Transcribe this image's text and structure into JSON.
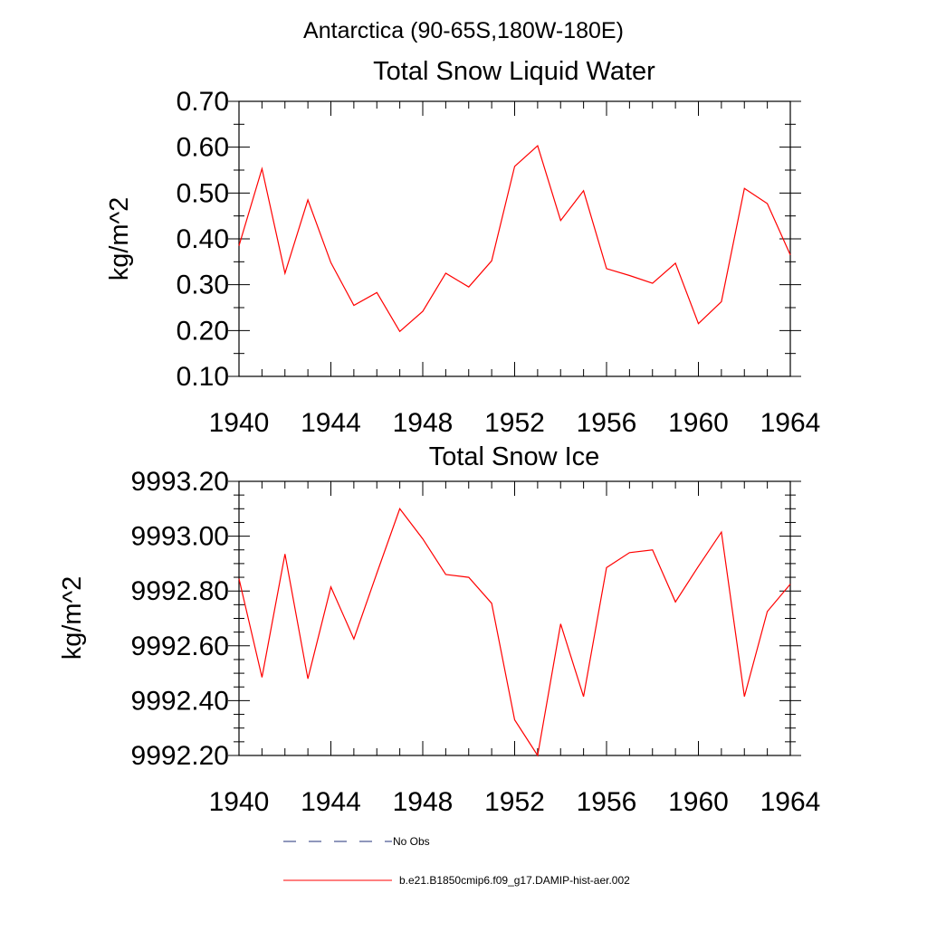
{
  "figure_title": "Antarctica (90-65S,180W-180E)",
  "colors": {
    "series": "#ff0000",
    "no_obs": "#1f2f7a",
    "axis": "#000000"
  },
  "chart_data": [
    {
      "type": "line",
      "title": "Total Snow Liquid Water",
      "ylabel": "kg/m^2",
      "xlabel": "",
      "xlim": [
        1940,
        1964
      ],
      "ylim": [
        0.1,
        0.7
      ],
      "x_ticks": [
        "1940",
        "1944",
        "1948",
        "1952",
        "1956",
        "1960",
        "1964"
      ],
      "y_ticks": [
        "0.10",
        "0.20",
        "0.30",
        "0.40",
        "0.50",
        "0.60",
        "0.70"
      ],
      "grid": false,
      "series": [
        {
          "name": "b.e21.B1850cmip6.f09_g17.DAMIP-hist-aer.002",
          "x": [
            1940,
            1941,
            1942,
            1943,
            1944,
            1945,
            1946,
            1947,
            1948,
            1949,
            1950,
            1951,
            1952,
            1953,
            1954,
            1955,
            1956,
            1957,
            1958,
            1959,
            1960,
            1961,
            1962,
            1963,
            1964
          ],
          "values": [
            0.385,
            0.553,
            0.325,
            0.485,
            0.348,
            0.255,
            0.283,
            0.198,
            0.242,
            0.325,
            0.295,
            0.352,
            0.558,
            0.603,
            0.44,
            0.505,
            0.335,
            0.32,
            0.303,
            0.347,
            0.215,
            0.263,
            0.51,
            0.477,
            0.365
          ]
        }
      ]
    },
    {
      "type": "line",
      "title": "Total Snow Ice",
      "ylabel": "kg/m^2",
      "xlabel": "",
      "xlim": [
        1940,
        1964
      ],
      "ylim": [
        9992.2,
        9993.2
      ],
      "x_ticks": [
        "1940",
        "1944",
        "1948",
        "1952",
        "1956",
        "1960",
        "1964"
      ],
      "y_ticks": [
        "9992.20",
        "9992.40",
        "9992.60",
        "9992.80",
        "9993.00",
        "9993.20"
      ],
      "grid": false,
      "series": [
        {
          "name": "b.e21.B1850cmip6.f09_g17.DAMIP-hist-aer.002",
          "x": [
            1940,
            1941,
            1942,
            1943,
            1944,
            1945,
            1946,
            1947,
            1948,
            1949,
            1950,
            1951,
            1952,
            1953,
            1954,
            1955,
            1956,
            1957,
            1958,
            1959,
            1960,
            1961,
            1962,
            1963,
            1964
          ],
          "values": [
            9992.845,
            9992.485,
            9992.935,
            9992.48,
            9992.815,
            9992.625,
            9992.865,
            9993.1,
            9992.99,
            9992.86,
            9992.85,
            9992.755,
            9992.33,
            9992.2,
            9992.68,
            9992.415,
            9992.885,
            9992.94,
            9992.95,
            9992.76,
            9992.89,
            9993.015,
            9992.415,
            9992.725,
            9992.825
          ]
        }
      ]
    }
  ],
  "legend": {
    "placement": "bottom",
    "entries": [
      {
        "label": "No Obs",
        "style": "dashed"
      },
      {
        "label": "b.e21.B1850cmip6.f09_g17.DAMIP-hist-aer.002",
        "style": "solid"
      }
    ]
  }
}
